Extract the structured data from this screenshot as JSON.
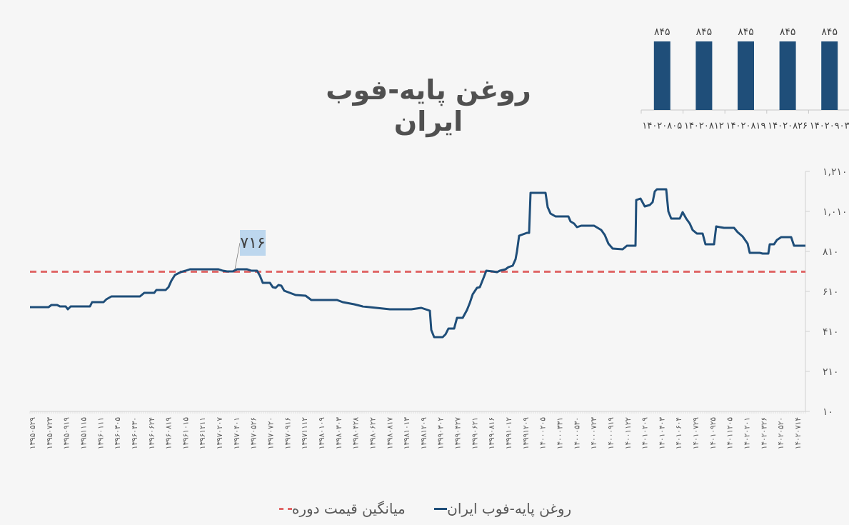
{
  "title": "روغن پایه-فوب ایران",
  "legend": {
    "series_label": "روغن پایه-فوب ایران",
    "average_label": "میانگین قیمت دوره"
  },
  "callout": {
    "label": "۷۱۶",
    "value": 716
  },
  "colors": {
    "line": "#1f4e79",
    "average": "#e06666",
    "bar": "#1f4e79",
    "callout_bg": "#bdd7ee",
    "background": "#f6f6f6"
  },
  "chart_data": [
    {
      "type": "bar",
      "title": "",
      "categories": [
        "۱۴۰۲۰۸۰۵",
        "۱۴۰۲۰۸۱۲",
        "۱۴۰۲۰۸۱۹",
        "۱۴۰۲۰۸۲۶",
        "۱۴۰۲۰۹۰۳"
      ],
      "categories_latin": [
        "14020805",
        "14020812",
        "14020819",
        "14020826",
        "14020903"
      ],
      "values": [
        845,
        845,
        845,
        845,
        845
      ],
      "value_labels": [
        "۸۴۵",
        "۸۴۵",
        "۸۴۵",
        "۸۴۵",
        "۸۴۵"
      ],
      "grid": false,
      "yaxis_visible": false
    },
    {
      "type": "line",
      "title": "روغن پایه-فوب ایران",
      "xlabel": "",
      "ylabel": "",
      "ylim": [
        10,
        1210
      ],
      "y_ticks": [
        10,
        210,
        410,
        610,
        810,
        1010,
        1210
      ],
      "y_tick_labels": [
        "۱۰",
        "۲۱۰",
        "۴۱۰",
        "۶۱۰",
        "۸۱۰",
        "۱,۰۱۰",
        "۱,۲۱۰"
      ],
      "y_axis_position": "right",
      "grid": false,
      "legend_position": "bottom",
      "x_tick_labels": [
        "۱۳۹۵۰۵۲۹",
        "۱۳۹۵۰۷۲۳",
        "۱۳۹۵۰۹۱۹",
        "۱۳۹۵۱۱۱۵",
        "۱۳۹۶۰۱۱۱",
        "۱۳۹۶۰۳۰۵",
        "۱۳۹۶۰۴۳۰",
        "۱۳۹۶۰۶۲۴",
        "۱۳۹۶۰۸۱۹",
        "۱۳۹۶۱۰۱۵",
        "۱۳۹۶۱۲۱۱",
        "۱۳۹۷۰۲۰۷",
        "۱۳۹۷۰۴۰۱",
        "۱۳۹۷۰۵۲۶",
        "۱۳۹۷۰۷۲۰",
        "۱۳۹۷۰۹۱۶",
        "۱۳۹۷۱۱۱۲",
        "۱۳۹۸۰۱۰۹",
        "۱۳۹۸۰۳۰۳",
        "۱۳۹۸۰۴۲۸",
        "۱۳۹۸۰۶۲۲",
        "۱۳۹۸۰۸۱۷",
        "۱۳۹۸۱۰۱۳",
        "۱۳۹۸۱۲۰۹",
        "۱۳۹۹۰۳۰۲",
        "۱۳۹۹۰۴۲۷",
        "۱۳۹۹۰۶۲۱",
        "۱۳۹۹۰۸۱۶",
        "۱۳۹۹۱۰۱۲",
        "۱۳۹۹۱۲۰۹",
        "۱۴۰۰۰۲۰۵",
        "۱۴۰۰۰۳۳۱",
        "۱۴۰۰۰۵۳۰",
        "۱۴۰۰۰۷۲۳",
        "۱۴۰۰۰۹۱۹",
        "۱۴۰۰۱۱۲۲",
        "۱۴۰۱۰۲۰۹",
        "۱۴۰۱۰۴۰۳",
        "۱۴۰۱۰۶۰۴",
        "۱۴۰۱۰۷۲۹",
        "۱۴۰۱۰۹۲۵",
        "۱۴۰۱۱۲۰۵",
        "۱۴۰۲۰۲۰۱",
        "۱۴۰۲۰۳۲۶",
        "۱۴۰۲۰۵۲۰",
        "۱۴۰۲۰۷۱۴"
      ],
      "x_tick_labels_latin": [
        "13950529",
        "13950723",
        "13950919",
        "13951115",
        "13960111",
        "13960305",
        "13960430",
        "13960624",
        "13960819",
        "13961015",
        "13961211",
        "13970207",
        "13970401",
        "13970526",
        "13970720",
        "13970916",
        "13971112",
        "13980109",
        "13980303",
        "13980428",
        "13980622",
        "13980817",
        "13981013",
        "13981209",
        "13990302",
        "13990427",
        "13990621",
        "13990816",
        "13991012",
        "13991209",
        "14000205",
        "14000331",
        "14000530",
        "14000723",
        "14000919",
        "14001122",
        "14010209",
        "14010403",
        "14010604",
        "14010729",
        "14010925",
        "14011205",
        "14020201",
        "14020326",
        "14020520",
        "14020714"
      ],
      "series": [
        {
          "name": "روغن پایه-فوب ایران",
          "style": "solid",
          "color": "#1f4e79",
          "approx_values_at_ticks": [
            555,
            555,
            550,
            553,
            580,
            595,
            595,
            610,
            620,
            685,
            720,
            720,
            715,
            720,
            645,
            615,
            600,
            585,
            580,
            570,
            565,
            560,
            560,
            555,
            400,
            445,
            570,
            720,
            745,
            880,
            1105,
            1000,
            960,
            950,
            855,
            850,
            1070,
            1120,
            990,
            900,
            950,
            940,
            830,
            835,
            870,
            850
          ],
          "values_at_ticks_end": 845
        },
        {
          "name": "میانگین قیمت دوره",
          "style": "dashed",
          "color": "#e06666",
          "value": 716
        }
      ],
      "annotations": [
        {
          "text": "۷۱۶",
          "value": 716,
          "points_to": "average_line"
        }
      ]
    }
  ]
}
